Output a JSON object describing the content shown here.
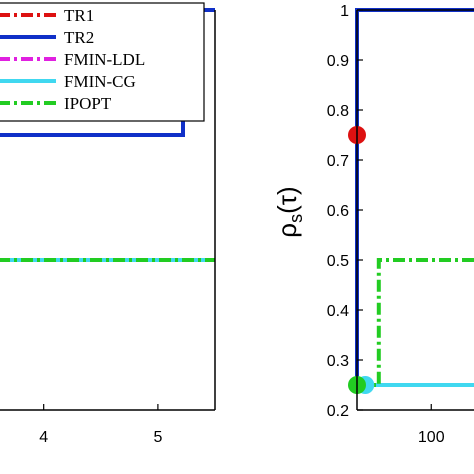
{
  "chart_data": [
    {
      "type": "line",
      "title": "",
      "xlabel": "",
      "ylabel": "",
      "x_ticks": [
        "4",
        "5"
      ],
      "xlim": [
        3.6,
        5.5
      ],
      "ylim": [
        0.2,
        1.0
      ],
      "legend": {
        "placement": "top-right",
        "entries": [
          "TR1",
          "TR2",
          "FMIN-LDL",
          "FMIN-CG",
          "IPOPT"
        ]
      },
      "series": [
        {
          "name": "TR1",
          "color": "#dd1111",
          "dash": "dashdot",
          "points": [
            [
              3.6,
              1.0
            ],
            [
              5.5,
              1.0
            ]
          ]
        },
        {
          "name": "TR2",
          "color": "#1030c8",
          "dash": "solid",
          "points": [
            [
              3.6,
              0.75
            ],
            [
              5.22,
              0.75
            ],
            [
              5.22,
              1.0
            ],
            [
              5.5,
              1.0
            ]
          ]
        },
        {
          "name": "FMIN-LDL",
          "color": "#e020e0",
          "dash": "dashdot",
          "points": [
            [
              3.6,
              0.5
            ],
            [
              5.5,
              0.5
            ]
          ]
        },
        {
          "name": "FMIN-CG",
          "color": "#40d8f0",
          "dash": "solid",
          "points": [
            [
              3.6,
              0.5
            ],
            [
              5.5,
              0.5
            ]
          ]
        },
        {
          "name": "IPOPT",
          "color": "#22cc22",
          "dash": "dashdot",
          "points": [
            [
              3.6,
              0.5
            ],
            [
              5.5,
              0.5
            ]
          ]
        }
      ]
    },
    {
      "type": "line",
      "title": "",
      "xlabel": "",
      "ylabel": "ρ_s(τ)",
      "ylabel_display": {
        "base": "ρ",
        "sub": "s",
        "arg": "(τ)"
      },
      "x_ticks": [
        "100"
      ],
      "y_ticks": [
        "0.2",
        "0.3",
        "0.4",
        "0.5",
        "0.6",
        "0.7",
        "0.8",
        "0.9",
        "1"
      ],
      "xlim": [
        1,
        165
      ],
      "ylim": [
        0.2,
        1.0
      ],
      "series": [
        {
          "name": "TR1",
          "color": "#dd1111",
          "dash": "dashdot",
          "points": [
            [
              1,
              0.75
            ],
            [
              1.2,
              0.75
            ]
          ],
          "marker_at": [
            1,
            0.75
          ]
        },
        {
          "name": "TR2",
          "color": "#1030c8",
          "dash": "solid",
          "points": [
            [
              1,
              0.25
            ],
            [
              1,
              1.0
            ],
            [
              165,
              1.0
            ]
          ]
        },
        {
          "name": "FMIN-LDL",
          "color": "#e020e0",
          "dash": "dashdot",
          "points": [
            [
              1,
              0.25
            ],
            [
              165,
              0.25
            ]
          ]
        },
        {
          "name": "FMIN-CG",
          "color": "#40d8f0",
          "dash": "solid",
          "points": [
            [
              1,
              0.25
            ],
            [
              165,
              0.25
            ]
          ],
          "marker_at": [
            12,
            0.25
          ]
        },
        {
          "name": "IPOPT",
          "color": "#22cc22",
          "dash": "dashdot",
          "points": [
            [
              1,
              0.25
            ],
            [
              30,
              0.25
            ],
            [
              30,
              0.5
            ],
            [
              165,
              0.5
            ]
          ],
          "marker_at": [
            1,
            0.25
          ]
        }
      ]
    }
  ]
}
